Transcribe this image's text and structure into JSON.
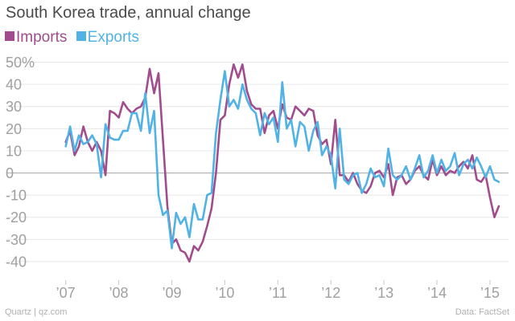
{
  "chart_data": {
    "type": "line",
    "title": "South Korea trade, annual change",
    "xlabel": "",
    "ylabel": "",
    "ylim": [
      -48,
      52
    ],
    "xlim": [
      2006.55,
      2015.35
    ],
    "y_ticks": [
      50,
      40,
      30,
      20,
      10,
      0,
      -10,
      -20,
      -30,
      -40
    ],
    "y_tick_labels": [
      "50%",
      "40",
      "30",
      "20",
      "10",
      "0",
      "-10",
      "-20",
      "-30",
      "-40"
    ],
    "x_ticks": [
      2007,
      2008,
      2009,
      2010,
      2011,
      2012,
      2013,
      2014,
      2015
    ],
    "x_tick_labels": [
      "’07",
      "’08",
      "’09",
      "’10",
      "’11",
      "’12",
      "’13",
      "’14",
      "’15"
    ],
    "grid": "horizontal",
    "legend": "top-left",
    "series": [
      {
        "name": "Imports",
        "color": "#a14c8c",
        "x": [
          2007.0,
          2007.083,
          2007.167,
          2007.25,
          2007.333,
          2007.417,
          2007.5,
          2007.583,
          2007.667,
          2007.75,
          2007.833,
          2007.917,
          2008.0,
          2008.083,
          2008.167,
          2008.25,
          2008.333,
          2008.417,
          2008.5,
          2008.583,
          2008.667,
          2008.75,
          2008.833,
          2008.917,
          2009.0,
          2009.083,
          2009.167,
          2009.25,
          2009.333,
          2009.417,
          2009.5,
          2009.583,
          2009.667,
          2009.75,
          2009.833,
          2009.917,
          2010.0,
          2010.083,
          2010.167,
          2010.25,
          2010.333,
          2010.417,
          2010.5,
          2010.583,
          2010.667,
          2010.75,
          2010.833,
          2010.917,
          2011.0,
          2011.083,
          2011.167,
          2011.25,
          2011.333,
          2011.417,
          2011.5,
          2011.583,
          2011.667,
          2011.75,
          2011.833,
          2011.917,
          2012.0,
          2012.083,
          2012.167,
          2012.25,
          2012.333,
          2012.417,
          2012.5,
          2012.583,
          2012.667,
          2012.75,
          2012.833,
          2012.917,
          2013.0,
          2013.083,
          2013.167,
          2013.25,
          2013.333,
          2013.417,
          2013.5,
          2013.583,
          2013.667,
          2013.75,
          2013.833,
          2013.917,
          2014.0,
          2014.083,
          2014.167,
          2014.25,
          2014.333,
          2014.417,
          2014.5,
          2014.583,
          2014.667,
          2014.75,
          2014.833,
          2014.917,
          2015.0,
          2015.083,
          2015.167
        ],
        "values": [
          14,
          19,
          8,
          12,
          21,
          14,
          10,
          14,
          10,
          -1,
          28,
          27,
          25,
          32,
          29,
          27,
          29,
          30,
          34,
          47,
          36,
          45,
          15,
          -15,
          -32,
          -30,
          -35,
          -36,
          -40,
          -33,
          -35,
          -31,
          -24,
          -16,
          0,
          24,
          26,
          40,
          49,
          43,
          49,
          37,
          31,
          29,
          29,
          18,
          26,
          28,
          20,
          31,
          25,
          24,
          30,
          28,
          26,
          29,
          28,
          17,
          13,
          15,
          4,
          24,
          -1,
          -1,
          -4,
          0,
          -5,
          -8,
          -9,
          -6,
          0,
          1,
          -2,
          4,
          -10,
          -2,
          -1,
          -5,
          -3,
          1,
          3,
          -1,
          -3,
          6,
          -1,
          3,
          -1,
          1,
          0,
          3,
          5,
          2,
          8,
          -3,
          -4,
          -1,
          -11,
          -20,
          -15
        ]
      },
      {
        "name": "Exports",
        "color": "#51b2e5",
        "x": [
          2007.0,
          2007.083,
          2007.167,
          2007.25,
          2007.333,
          2007.417,
          2007.5,
          2007.583,
          2007.667,
          2007.75,
          2007.833,
          2007.917,
          2008.0,
          2008.083,
          2008.167,
          2008.25,
          2008.333,
          2008.417,
          2008.5,
          2008.583,
          2008.667,
          2008.75,
          2008.833,
          2008.917,
          2009.0,
          2009.083,
          2009.167,
          2009.25,
          2009.333,
          2009.417,
          2009.5,
          2009.583,
          2009.667,
          2009.75,
          2009.833,
          2009.917,
          2010.0,
          2010.083,
          2010.167,
          2010.25,
          2010.333,
          2010.417,
          2010.5,
          2010.583,
          2010.667,
          2010.75,
          2010.833,
          2010.917,
          2011.0,
          2011.083,
          2011.167,
          2011.25,
          2011.333,
          2011.417,
          2011.5,
          2011.583,
          2011.667,
          2011.75,
          2011.833,
          2011.917,
          2012.0,
          2012.083,
          2012.167,
          2012.25,
          2012.333,
          2012.417,
          2012.5,
          2012.583,
          2012.667,
          2012.75,
          2012.833,
          2012.917,
          2013.0,
          2013.083,
          2013.167,
          2013.25,
          2013.333,
          2013.417,
          2013.5,
          2013.583,
          2013.667,
          2013.75,
          2013.833,
          2013.917,
          2014.0,
          2014.083,
          2014.167,
          2014.25,
          2014.333,
          2014.417,
          2014.5,
          2014.583,
          2014.667,
          2014.75,
          2014.833,
          2014.917,
          2015.0,
          2015.083,
          2015.167
        ],
        "values": [
          12,
          21,
          10,
          17,
          13,
          14,
          17,
          13,
          -2,
          22,
          16,
          15,
          15,
          19,
          19,
          27,
          27,
          19,
          36,
          18,
          28,
          -10,
          -19,
          -17,
          -34,
          -18,
          -23,
          -20,
          -29,
          -14,
          -21,
          -21,
          -10,
          -9,
          18,
          33,
          46,
          30,
          33,
          29,
          40,
          33,
          29,
          27,
          17,
          27,
          22,
          25,
          14,
          41,
          20,
          24,
          12,
          23,
          21,
          10,
          19,
          23,
          8,
          12,
          8,
          -7,
          20,
          -3,
          -5,
          -1,
          0,
          -9,
          -5,
          2,
          -2,
          -1,
          -6,
          11,
          -1,
          -3,
          -1,
          3,
          -3,
          2,
          8,
          -2,
          1,
          8,
          0,
          6,
          1,
          3,
          9,
          -1,
          4,
          6,
          2,
          7,
          3,
          -2,
          3,
          -3,
          -4
        ]
      }
    ]
  },
  "legend": {
    "imports_label": "Imports",
    "exports_label": "Exports"
  },
  "footer": {
    "source_left": "Quartz | qz.com",
    "source_right": "Data: FactSet"
  }
}
